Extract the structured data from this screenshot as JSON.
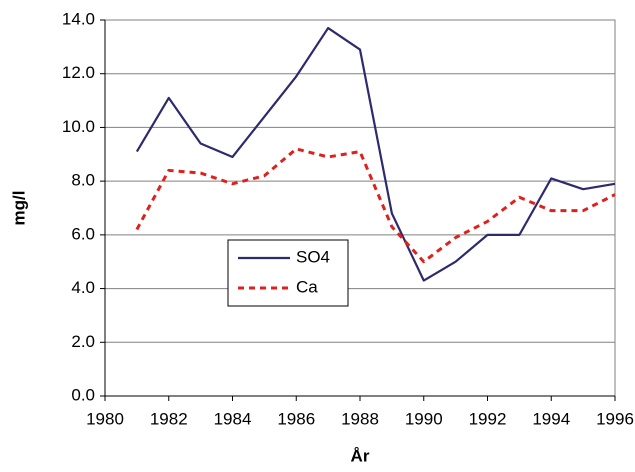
{
  "chart_data": {
    "type": "line",
    "x_label": "År",
    "y_label": "mg/l",
    "x": [
      1981,
      1982,
      1983,
      1984,
      1985,
      1986,
      1987,
      1988,
      1989,
      1990,
      1991,
      1992,
      1993,
      1994,
      1995,
      1996
    ],
    "series": [
      {
        "name": "SO4",
        "color": "#2e2a6e",
        "dash": false,
        "values": [
          9.1,
          11.1,
          9.4,
          8.9,
          10.4,
          11.9,
          13.7,
          12.9,
          6.8,
          4.3,
          5.0,
          6.0,
          6.0,
          8.1,
          7.7,
          7.9
        ]
      },
      {
        "name": "Ca",
        "color": "#e0201c",
        "dash": true,
        "values": [
          6.2,
          8.4,
          8.3,
          7.9,
          8.2,
          9.2,
          8.9,
          9.1,
          6.3,
          5.0,
          5.9,
          6.5,
          7.4,
          6.9,
          6.9,
          7.5
        ]
      }
    ],
    "xlim": [
      1980,
      1996
    ],
    "xticks": [
      1980,
      1982,
      1984,
      1986,
      1988,
      1990,
      1992,
      1994,
      1996
    ],
    "ylim": [
      0,
      14
    ],
    "yticks": [
      {
        "value": 0,
        "label": "0.0"
      },
      {
        "value": 2,
        "label": "2.0"
      },
      {
        "value": 4,
        "label": "4.0"
      },
      {
        "value": 6,
        "label": "6.0"
      },
      {
        "value": 8,
        "label": "8.0"
      },
      {
        "value": 10,
        "label": "10.0"
      },
      {
        "value": 12,
        "label": "12.0"
      },
      {
        "value": 14,
        "label": "14.0"
      }
    ],
    "grid": true
  }
}
